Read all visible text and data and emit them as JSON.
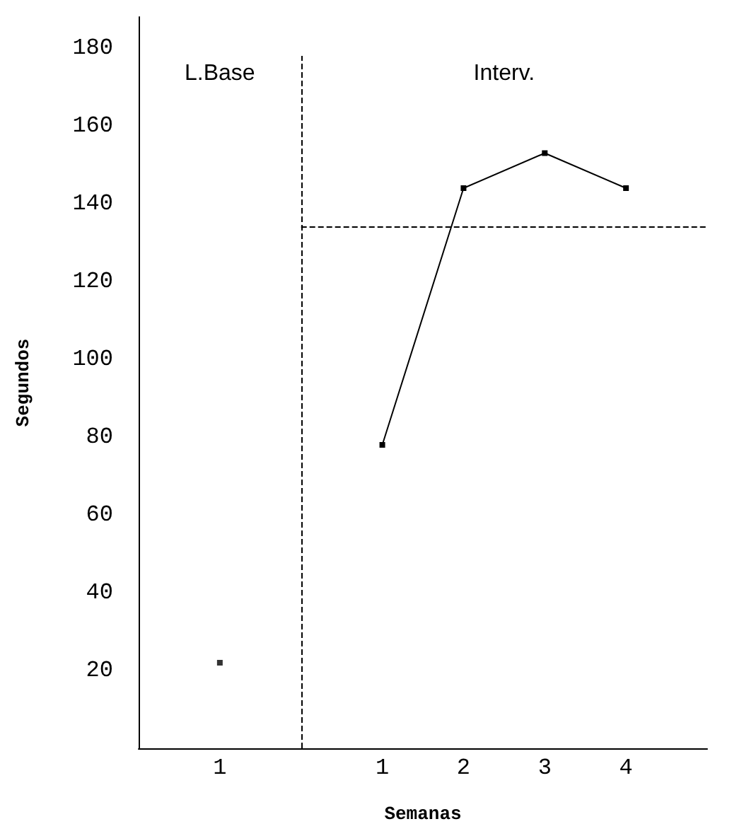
{
  "chart_data": {
    "type": "line",
    "xlabel": "Semanas",
    "ylabel": "Segundos",
    "categories": [
      "1",
      null,
      "1",
      "2",
      "3",
      "4",
      null
    ],
    "ylim": [
      0,
      188
    ],
    "yticks": [
      20,
      40,
      60,
      80,
      100,
      120,
      140,
      160,
      180
    ],
    "series": [
      {
        "type": "scatter",
        "color": "#000000",
        "values": [
          22,
          null,
          null,
          null,
          null,
          null,
          null
        ]
      },
      {
        "color": "#000000",
        "values": [
          null,
          null,
          78,
          144,
          153,
          144,
          null
        ]
      }
    ],
    "ref_lines": [
      {
        "axis": "y",
        "value": 134,
        "line_style": "dashed",
        "color": "#000000"
      }
    ],
    "annotations": [
      "L.Base",
      "Interv."
    ],
    "marker": "square",
    "line_style": "solid"
  }
}
